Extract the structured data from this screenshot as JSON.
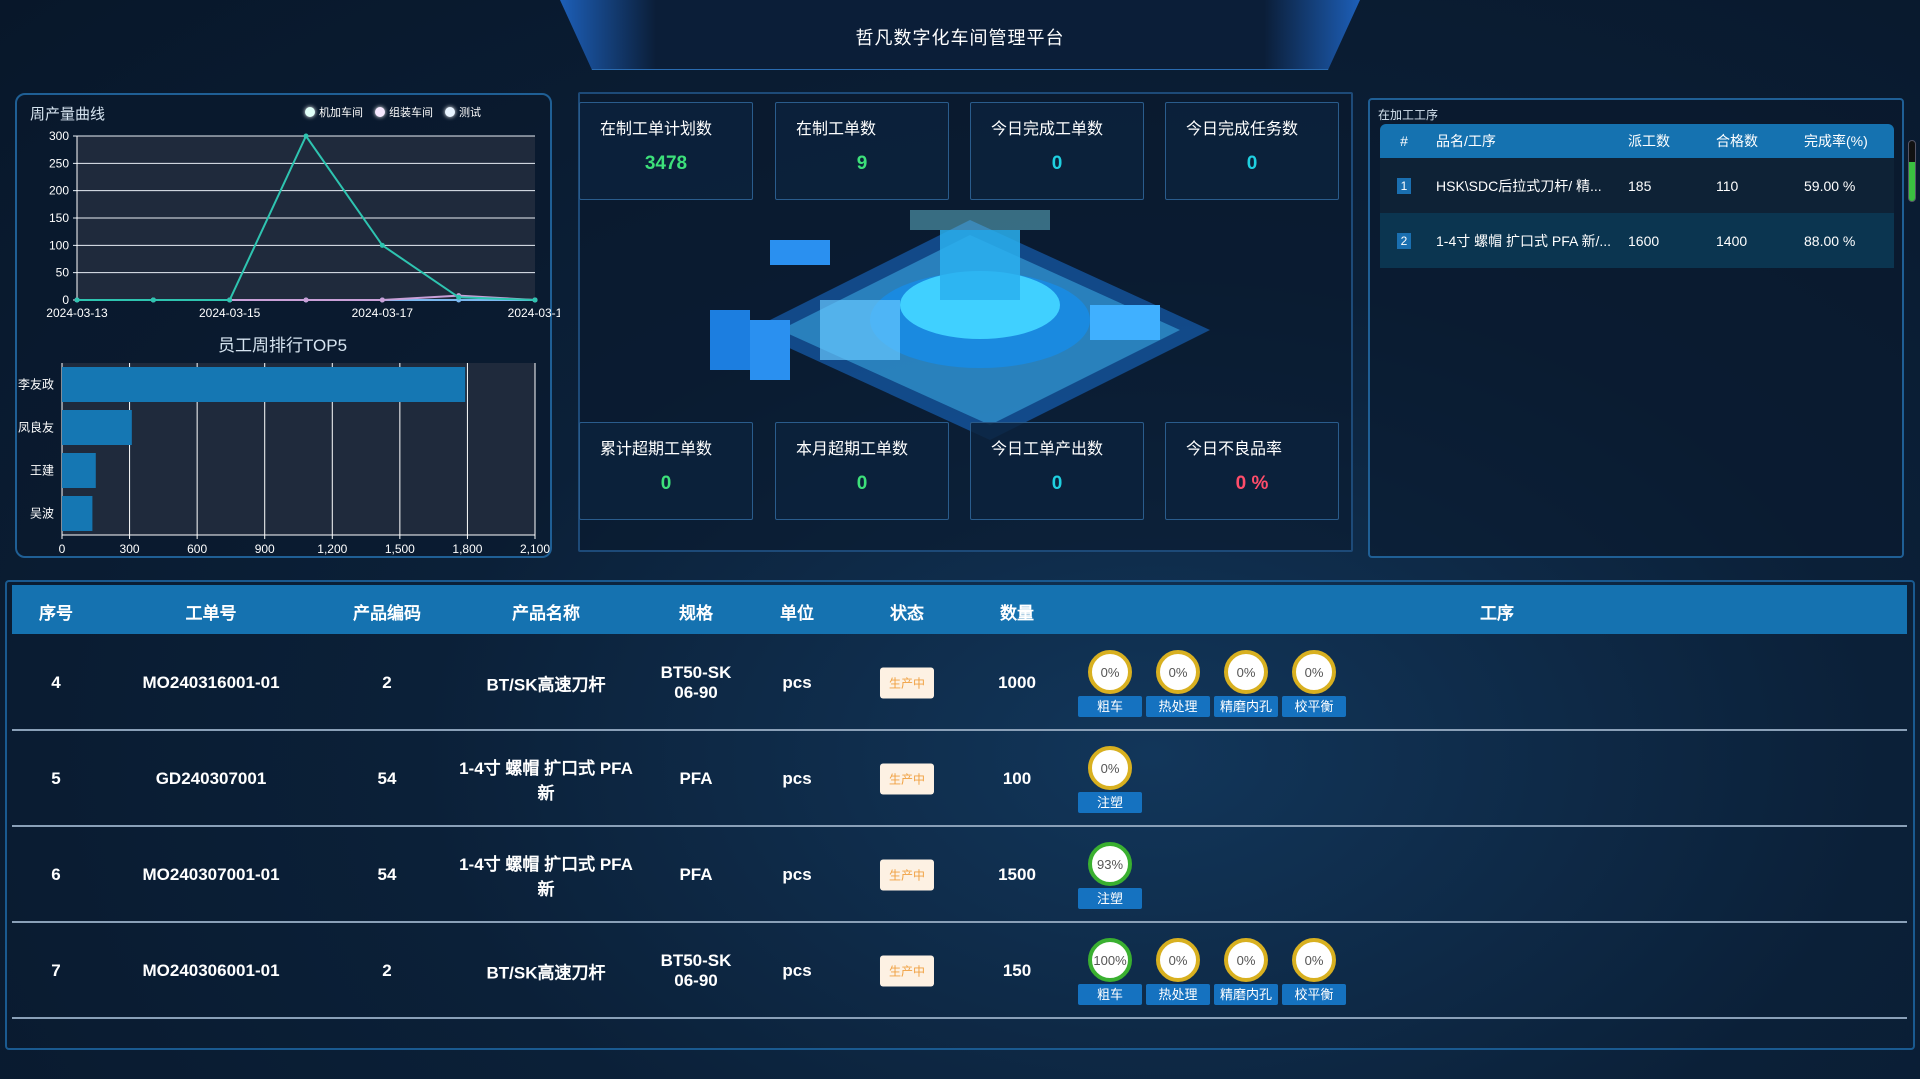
{
  "header": {
    "title": "哲凡数字化车间管理平台"
  },
  "colors": {
    "accent": "#1572b0",
    "green": "#3de07a",
    "cyan": "#1fd0e0",
    "red": "#ff4d6a",
    "line1": "#2ec4b0",
    "line2": "#c9a0d8",
    "line3": "#7ab8f0"
  },
  "left": {
    "line_title": "周产量曲线",
    "bar_title": "员工周排行TOP5"
  },
  "chart_data": [
    {
      "type": "line",
      "title": "周产量曲线",
      "x": [
        "2024-03-13",
        "2024-03-14",
        "2024-03-15",
        "2024-03-16",
        "2024-03-17",
        "2024-03-18",
        "2024-03-19"
      ],
      "xtick_labels": [
        "2024-03-13",
        "2024-03-15",
        "2024-03-17",
        "2024-03-1"
      ],
      "ylim": [
        0,
        300
      ],
      "yticks": [
        0,
        50,
        100,
        150,
        200,
        250,
        300
      ],
      "grid": true,
      "legend": "top-right",
      "series": [
        {
          "name": "机加车间",
          "values": [
            0,
            0,
            0,
            300,
            100,
            5,
            0
          ]
        },
        {
          "name": "组装车间",
          "values": [
            0,
            0,
            0,
            0,
            0,
            8,
            0
          ]
        },
        {
          "name": "测试",
          "values": [
            0,
            0,
            0,
            0,
            0,
            0,
            0
          ]
        }
      ]
    },
    {
      "type": "bar",
      "orientation": "horizontal",
      "title": "员工周排行TOP5",
      "categories": [
        "李友政",
        "凤良友",
        "王建",
        "吴波"
      ],
      "values": [
        1790,
        310,
        150,
        135
      ],
      "xlim": [
        0,
        2100
      ],
      "xticks": [
        "0",
        "300",
        "600",
        "900",
        "1,200",
        "1,500",
        "1,800",
        "2,100"
      ],
      "grid": true
    }
  ],
  "kpis": [
    {
      "label": "在制工单计划数",
      "value": "3478",
      "color": "#3de07a"
    },
    {
      "label": "在制工单数",
      "value": "9",
      "color": "#3de07a"
    },
    {
      "label": "今日完成工单数",
      "value": "0",
      "color": "#1fd0e0"
    },
    {
      "label": "今日完成任务数",
      "value": "0",
      "color": "#1fd0e0"
    },
    {
      "label": "累计超期工单数",
      "value": "0",
      "color": "#3de07a"
    },
    {
      "label": "本月超期工单数",
      "value": "0",
      "color": "#3de07a"
    },
    {
      "label": "今日工单产出数",
      "value": "0",
      "color": "#1fd0e0"
    },
    {
      "label": "今日不良品率",
      "value": "0 %",
      "color": "#ff4d6a"
    }
  ],
  "right": {
    "title": "在加工工序",
    "headers": [
      "#",
      "品名/工序",
      "派工数",
      "合格数",
      "完成率(%)"
    ],
    "rows": [
      [
        "1",
        "HSK\\SDC后拉式刀杆/ 精...",
        "185",
        "110",
        "59.00 %"
      ],
      [
        "2",
        "1-4寸 螺帽 扩口式 PFA 新/...",
        "1600",
        "1400",
        "88.00 %"
      ]
    ]
  },
  "table": {
    "headers": [
      "序号",
      "工单号",
      "产品编码",
      "产品名称",
      "规格",
      "单位",
      "状态",
      "数量",
      "工序"
    ],
    "rows": [
      {
        "no": "4",
        "order": "MO240316001-01",
        "code": "2",
        "name": "BT/SK高速刀杆",
        "spec": "BT50-SK 06-90",
        "unit": "pcs",
        "status": "生产中",
        "qty": "1000",
        "procs": [
          {
            "p": "0%",
            "n": "粗车"
          },
          {
            "p": "0%",
            "n": "热处理"
          },
          {
            "p": "0%",
            "n": "精磨内孔"
          },
          {
            "p": "0%",
            "n": "校平衡"
          }
        ]
      },
      {
        "no": "5",
        "order": "GD240307001",
        "code": "54",
        "name": "1-4寸 螺帽 扩口式 PFA 新",
        "spec": "PFA",
        "unit": "pcs",
        "status": "生产中",
        "qty": "100",
        "procs": [
          {
            "p": "0%",
            "n": "注塑"
          }
        ]
      },
      {
        "no": "6",
        "order": "MO240307001-01",
        "code": "54",
        "name": "1-4寸 螺帽 扩口式 PFA 新",
        "spec": "PFA",
        "unit": "pcs",
        "status": "生产中",
        "qty": "1500",
        "procs": [
          {
            "p": "93%",
            "n": "注塑"
          }
        ]
      },
      {
        "no": "7",
        "order": "MO240306001-01",
        "code": "2",
        "name": "BT/SK高速刀杆",
        "spec": "BT50-SK 06-90",
        "unit": "pcs",
        "status": "生产中",
        "qty": "150",
        "procs": [
          {
            "p": "100%",
            "n": "粗车"
          },
          {
            "p": "0%",
            "n": "热处理"
          },
          {
            "p": "0%",
            "n": "精磨内孔"
          },
          {
            "p": "0%",
            "n": "校平衡"
          }
        ]
      }
    ]
  }
}
